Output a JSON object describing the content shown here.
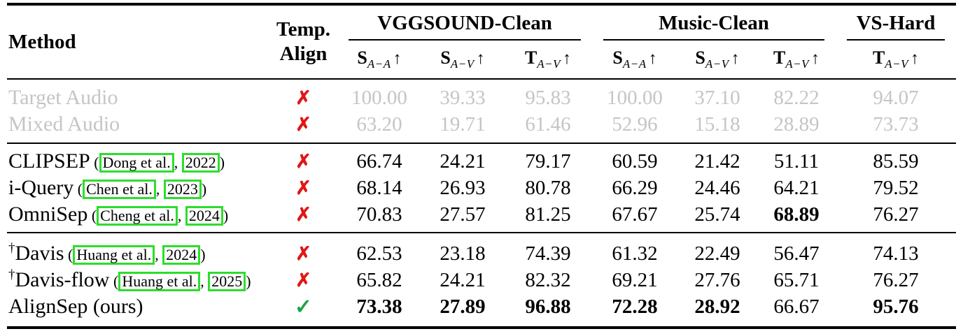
{
  "colors": {
    "muted_text": "#c5c5c5",
    "cross_red": "#e01717",
    "check_green": "#1ca344",
    "citation_box_green": "#2ddd2d",
    "rule": "#000000"
  },
  "symbols": {
    "cross": "✗",
    "check": "✓",
    "arrow": "↑",
    "dagger": "†"
  },
  "header": {
    "method": "Method",
    "temp_align_line1": "Temp.",
    "temp_align_line2": "Align",
    "groups": [
      {
        "label": "VGGSOUND-Clean",
        "metrics": [
          {
            "base": "S",
            "sub": "A−A"
          },
          {
            "base": "S",
            "sub": "A−V"
          },
          {
            "base": "T",
            "sub": "A−V"
          }
        ]
      },
      {
        "label": "Music-Clean",
        "metrics": [
          {
            "base": "S",
            "sub": "A−A"
          },
          {
            "base": "S",
            "sub": "A−V"
          },
          {
            "base": "T",
            "sub": "A−V"
          }
        ]
      },
      {
        "label": "VS-Hard",
        "metrics": [
          {
            "base": "T",
            "sub": "A−V"
          }
        ]
      }
    ]
  },
  "sections": [
    {
      "style": "muted",
      "rows": [
        {
          "method": {
            "prefix": "",
            "name": "Target Audio",
            "cite_authors": "",
            "cite_year": ""
          },
          "temp_align": "cross",
          "values": [
            "100.00",
            "39.33",
            "95.83",
            "100.00",
            "37.10",
            "82.22",
            "94.07"
          ],
          "bold": []
        },
        {
          "method": {
            "prefix": "",
            "name": "Mixed Audio",
            "cite_authors": "",
            "cite_year": ""
          },
          "temp_align": "cross",
          "values": [
            "63.20",
            "19.71",
            "61.46",
            "52.96",
            "15.18",
            "28.89",
            "73.73"
          ],
          "bold": []
        }
      ]
    },
    {
      "style": "normal",
      "rows": [
        {
          "method": {
            "prefix": "",
            "name": "CLIPSEP",
            "cite_authors": "Dong et al.",
            "cite_year": "2022"
          },
          "temp_align": "cross",
          "values": [
            "66.74",
            "24.21",
            "79.17",
            "60.59",
            "21.42",
            "51.11",
            "85.59"
          ],
          "bold": []
        },
        {
          "method": {
            "prefix": "",
            "name": "i-Query",
            "cite_authors": "Chen et al.",
            "cite_year": "2023"
          },
          "temp_align": "cross",
          "values": [
            "68.14",
            "26.93",
            "80.78",
            "66.29",
            "24.46",
            "64.21",
            "79.52"
          ],
          "bold": []
        },
        {
          "method": {
            "prefix": "",
            "name": "OmniSep",
            "cite_authors": "Cheng et al.",
            "cite_year": "2024"
          },
          "temp_align": "cross",
          "values": [
            "70.83",
            "27.57",
            "81.25",
            "67.67",
            "25.74",
            "68.89",
            "76.27"
          ],
          "bold": [
            5
          ]
        }
      ]
    },
    {
      "style": "normal",
      "rows": [
        {
          "method": {
            "prefix": "†",
            "name": "Davis",
            "cite_authors": "Huang et al.",
            "cite_year": "2024"
          },
          "temp_align": "cross",
          "values": [
            "62.53",
            "23.18",
            "74.39",
            "61.32",
            "22.49",
            "56.47",
            "74.13"
          ],
          "bold": []
        },
        {
          "method": {
            "prefix": "†",
            "name": "Davis-flow",
            "cite_authors": "Huang et al.",
            "cite_year": "2025"
          },
          "temp_align": "cross",
          "values": [
            "65.82",
            "24.21",
            "82.32",
            "69.21",
            "27.76",
            "65.71",
            "76.27"
          ],
          "bold": []
        },
        {
          "method": {
            "prefix": "",
            "name": "AlignSep (ours)",
            "cite_authors": "",
            "cite_year": ""
          },
          "temp_align": "check",
          "values": [
            "73.38",
            "27.89",
            "96.88",
            "72.28",
            "28.92",
            "66.67",
            "95.76"
          ],
          "bold": [
            0,
            1,
            2,
            3,
            4,
            6
          ]
        }
      ]
    }
  ]
}
